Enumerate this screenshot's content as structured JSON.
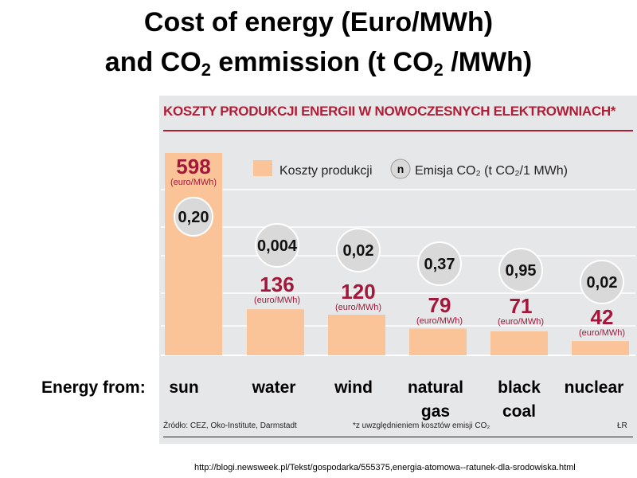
{
  "slide": {
    "title_line1": "Cost of energy (Euro/MWh)",
    "title_line2_a": "and CO",
    "title_line2_sub": "2",
    "title_line2_b": " emmission (t CO",
    "title_line2_sub2": "2",
    "title_line2_c": " /MWh)",
    "energy_from_label": "Energy from:",
    "categories_en": [
      "sun",
      "water",
      "wind",
      "natural gas",
      "black coal",
      "nuclear"
    ],
    "url": "http://blogi.newsweek.pl/Tekst/gospodarka/555375,energia-atomowa--ratunek-dla-srodowiska.html"
  },
  "infographic": {
    "banner": "KOSZTY PRODUKCJI ENERGII W NOWOCZESNYCH ELEKTROWNIACH*",
    "source": "Źródło: CEZ, Oko-Institute, Darmstadt",
    "footnote": "*z uwzględnieniem kosztów emisji CO₂",
    "credit": "ŁR"
  },
  "chart_data": {
    "type": "bar",
    "title": "KOSZTY PRODUKCJI ENERGII W NOWOCZESNYCH ELEKTROWNIACH*",
    "categories": [
      "sun",
      "water",
      "wind",
      "natural gas",
      "black coal",
      "nuclear"
    ],
    "series": [
      {
        "name": "Koszty produkcji",
        "unit": "(euro/MWh)",
        "values": [
          598,
          136,
          120,
          79,
          71,
          42
        ]
      },
      {
        "name": "Emisja CO₂ (t CO₂/1 MWh)",
        "values": [
          "0,20",
          "0,004",
          "0,02",
          "0,37",
          "0,95",
          "0,02"
        ]
      }
    ],
    "legend": {
      "cost": "Koszty produkcji",
      "emission_symbol": "n",
      "emission": "Emisja CO₂ (t CO₂/1 MWh)"
    },
    "unit_label": "(euro/MWh)",
    "ylim": [
      0,
      598
    ],
    "grid": true,
    "colors": {
      "bar": "#fbc498",
      "value_text": "#a3173a",
      "circle": "#d9d9d9",
      "circle_stroke": "#ffffff",
      "panel": "#e6e7e8"
    }
  }
}
